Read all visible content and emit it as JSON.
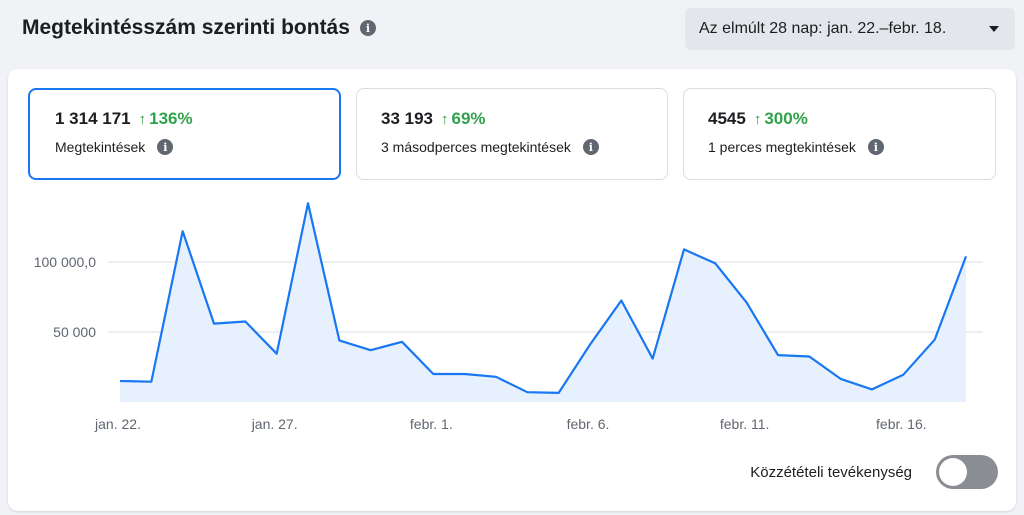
{
  "header": {
    "title": "Megtekintésszám szerinti bontás",
    "info_icon": "info-icon"
  },
  "date_range": {
    "label": "Az elmúlt 28 nap: jan. 22.–febr. 18.",
    "icon": "caret-down-icon"
  },
  "metrics": [
    {
      "value": "1 314 171",
      "delta": "136%",
      "label": "Megtekintések",
      "selected": true
    },
    {
      "value": "33 193",
      "delta": "69%",
      "label": "3 másodperces megtekintések",
      "selected": false
    },
    {
      "value": "4545",
      "delta": "300%",
      "label": "1 perces megtekintések",
      "selected": false
    }
  ],
  "colors": {
    "accent": "#1877f2",
    "positive": "#31a24c",
    "area_fill": "#e7f0fd",
    "line": "#1877f2"
  },
  "chart_data": {
    "type": "area",
    "y_ticks": [
      {
        "value": 100000,
        "label": "100 000,0"
      },
      {
        "value": 50000,
        "label": "50 000"
      }
    ],
    "x_ticks": [
      {
        "index": 0,
        "label": "jan. 22."
      },
      {
        "index": 5,
        "label": "jan. 27."
      },
      {
        "index": 10,
        "label": "febr. 1."
      },
      {
        "index": 15,
        "label": "febr. 6."
      },
      {
        "index": 20,
        "label": "febr. 11."
      },
      {
        "index": 25,
        "label": "febr. 16."
      }
    ],
    "ylim": [
      0,
      145000
    ],
    "grid": true,
    "series": [
      {
        "values": [
          15000,
          14500,
          122000,
          56000,
          57500,
          34500,
          142000,
          44000,
          37000,
          43000,
          20000,
          20000,
          18000,
          7000,
          6500,
          41000,
          72500,
          31000,
          109000,
          99000,
          71000,
          33500,
          32500,
          16500,
          9000,
          19500,
          44500,
          104000
        ]
      }
    ]
  },
  "toggle": {
    "label": "Közzétételi tevékenység",
    "on": false
  }
}
